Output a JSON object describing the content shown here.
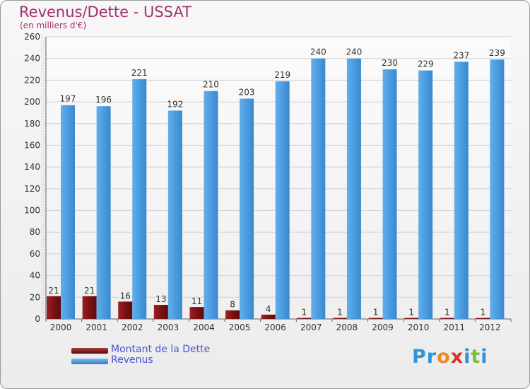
{
  "chart_data": {
    "type": "bar",
    "title": "Revenus/Dette - USSAT",
    "subtitle": "(en milliers d'€)",
    "categories": [
      "2000",
      "2001",
      "2002",
      "2003",
      "2004",
      "2005",
      "2006",
      "2007",
      "2008",
      "2009",
      "2010",
      "2011",
      "2012"
    ],
    "series": [
      {
        "name": "Montant de la Dette",
        "color": "#7a1214",
        "values": [
          21,
          21,
          16,
          13,
          11,
          8,
          4,
          1,
          1,
          1,
          1,
          1,
          1
        ]
      },
      {
        "name": "Revenus",
        "color": "#3d8fd6",
        "values": [
          197,
          196,
          221,
          192,
          210,
          203,
          219,
          240,
          240,
          230,
          229,
          237,
          239
        ]
      }
    ],
    "y_ticks": [
      "0",
      "20",
      "40",
      "60",
      "80",
      "100",
      "120",
      "140",
      "160",
      "180",
      "200",
      "220",
      "240",
      "260"
    ],
    "ylim": [
      0,
      260
    ],
    "grid": true,
    "legend_position": "bottom-left"
  },
  "branding": {
    "logo_letters": [
      {
        "ch": "P",
        "color": "#2f93d8"
      },
      {
        "ch": "r",
        "color": "#2f93d8"
      },
      {
        "ch": "o",
        "color": "#f08a24"
      },
      {
        "ch": "x",
        "color": "#d9332f"
      },
      {
        "ch": "i",
        "color": "#2f93d8"
      },
      {
        "ch": "t",
        "color": "#7cbf3a"
      },
      {
        "ch": "i",
        "color": "#2f93d8"
      }
    ]
  }
}
